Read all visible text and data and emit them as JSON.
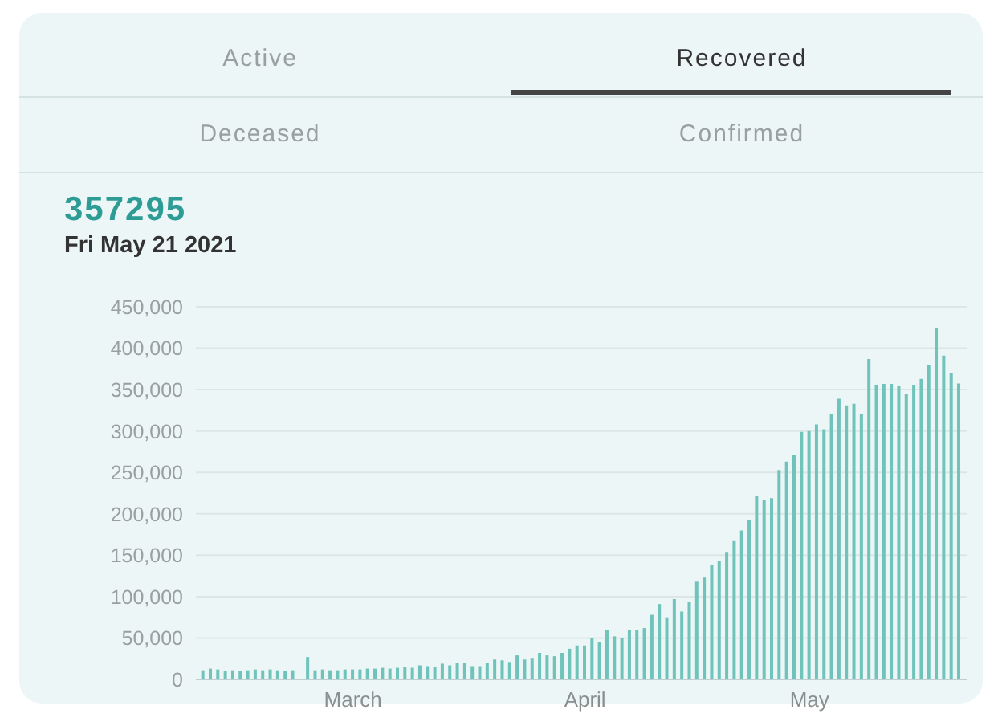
{
  "chart_data": {
    "type": "bar",
    "title": "357295",
    "subtitle": "Fri May 21 2021",
    "annotations": [
      "Active",
      "Recovered",
      "Deceased",
      "Confirmed"
    ],
    "x": [
      "2021-02-09",
      "2021-02-10",
      "2021-02-11",
      "2021-02-12",
      "2021-02-13",
      "2021-02-14",
      "2021-02-15",
      "2021-02-16",
      "2021-02-17",
      "2021-02-18",
      "2021-02-19",
      "2021-02-20",
      "2021-02-21",
      "2021-02-22",
      "2021-02-23",
      "2021-02-24",
      "2021-02-25",
      "2021-02-26",
      "2021-02-27",
      "2021-02-28",
      "2021-03-01",
      "2021-03-02",
      "2021-03-03",
      "2021-03-04",
      "2021-03-05",
      "2021-03-06",
      "2021-03-07",
      "2021-03-08",
      "2021-03-09",
      "2021-03-10",
      "2021-03-11",
      "2021-03-12",
      "2021-03-13",
      "2021-03-14",
      "2021-03-15",
      "2021-03-16",
      "2021-03-17",
      "2021-03-18",
      "2021-03-19",
      "2021-03-20",
      "2021-03-21",
      "2021-03-22",
      "2021-03-23",
      "2021-03-24",
      "2021-03-25",
      "2021-03-26",
      "2021-03-27",
      "2021-03-28",
      "2021-03-29",
      "2021-03-30",
      "2021-03-31",
      "2021-04-01",
      "2021-04-02",
      "2021-04-03",
      "2021-04-04",
      "2021-04-05",
      "2021-04-06",
      "2021-04-07",
      "2021-04-08",
      "2021-04-09",
      "2021-04-10",
      "2021-04-11",
      "2021-04-12",
      "2021-04-13",
      "2021-04-14",
      "2021-04-15",
      "2021-04-16",
      "2021-04-17",
      "2021-04-18",
      "2021-04-19",
      "2021-04-20",
      "2021-04-21",
      "2021-04-22",
      "2021-04-23",
      "2021-04-24",
      "2021-04-25",
      "2021-04-26",
      "2021-04-27",
      "2021-04-28",
      "2021-04-29",
      "2021-04-30",
      "2021-05-01",
      "2021-05-02",
      "2021-05-03",
      "2021-05-04",
      "2021-05-05",
      "2021-05-06",
      "2021-05-07",
      "2021-05-08",
      "2021-05-09",
      "2021-05-10",
      "2021-05-11",
      "2021-05-12",
      "2021-05-13",
      "2021-05-14",
      "2021-05-15",
      "2021-05-16",
      "2021-05-17",
      "2021-05-18",
      "2021-05-19",
      "2021-05-20",
      "2021-05-21"
    ],
    "values": [
      11000,
      13000,
      12000,
      10000,
      11000,
      10000,
      11000,
      12000,
      11000,
      12000,
      11000,
      10000,
      11000,
      null,
      27000,
      11000,
      12000,
      11000,
      11000,
      12000,
      12000,
      12000,
      13000,
      13000,
      14000,
      13000,
      14000,
      15000,
      14000,
      17000,
      16000,
      15000,
      19000,
      17000,
      20000,
      20000,
      16000,
      16000,
      20000,
      24000,
      23000,
      21000,
      29000,
      24000,
      26000,
      32000,
      29000,
      28000,
      32000,
      37000,
      41000,
      41000,
      50000,
      45000,
      60000,
      52000,
      50000,
      60000,
      60000,
      62000,
      78000,
      91000,
      75000,
      97000,
      82000,
      94000,
      118000,
      123000,
      138000,
      143000,
      154000,
      167000,
      180000,
      193000,
      221000,
      217000,
      219000,
      253000,
      263000,
      271000,
      299000,
      300000,
      308000,
      302000,
      321000,
      339000,
      331000,
      333000,
      320000,
      387000,
      355000,
      357000,
      357000,
      354000,
      345000,
      355000,
      363000,
      380000,
      424000,
      391000,
      370000,
      357295
    ],
    "color": "#6fc3ba",
    "xlim": [
      "2021-02-08",
      "2021-05-22"
    ],
    "xticks": [
      {
        "value": "2021-03-01",
        "label": "March"
      },
      {
        "value": "2021-04-01",
        "label": "April"
      },
      {
        "value": "2021-05-01",
        "label": "May"
      }
    ],
    "ylim": [
      0,
      450000
    ],
    "yticks": [
      {
        "value": 0,
        "label": "0"
      },
      {
        "value": 50000,
        "label": "50,000"
      },
      {
        "value": 100000,
        "label": "100,000"
      },
      {
        "value": 150000,
        "label": "150,000"
      },
      {
        "value": 200000,
        "label": "200,000"
      },
      {
        "value": 250000,
        "label": "250,000"
      },
      {
        "value": 300000,
        "label": "300,000"
      },
      {
        "value": 350000,
        "label": "350,000"
      },
      {
        "value": 400000,
        "label": "400,000"
      },
      {
        "value": 450000,
        "label": "450,000"
      }
    ],
    "grid": "y"
  }
}
